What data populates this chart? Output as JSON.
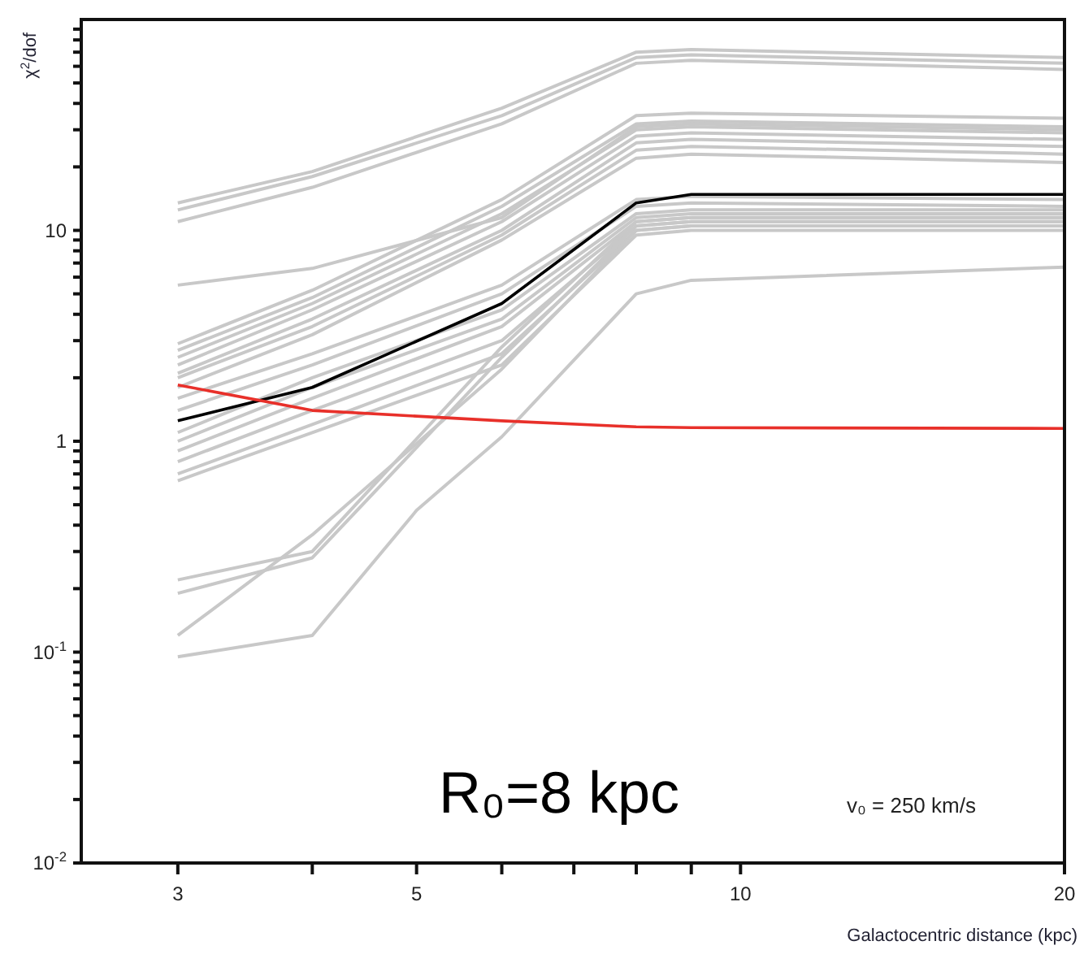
{
  "chart_data": {
    "type": "line",
    "xlabel": "Galactocentric distance (kpc)",
    "ylabel": "χ$^{2}$/dof",
    "log": "xy",
    "xlim": [
      2.44,
      20
    ],
    "ylim": [
      0.01,
      100
    ],
    "xticks": [
      3,
      {
        "value": 4,
        "label": null
      },
      5,
      {
        "value": 6,
        "label": null
      },
      {
        "value": 7,
        "label": null
      },
      {
        "value": 8,
        "label": null
      },
      {
        "value": 9,
        "label": null
      },
      10,
      20
    ],
    "yticks": [
      {
        "value": 0.01,
        "label": "10$^{-2}$"
      },
      {
        "value": 0.02,
        "label": null
      },
      {
        "value": 0.03,
        "label": null
      },
      {
        "value": 0.04,
        "label": null
      },
      {
        "value": 0.05,
        "label": null
      },
      {
        "value": 0.06,
        "label": null
      },
      {
        "value": 0.07,
        "label": null
      },
      {
        "value": 0.08,
        "label": null
      },
      {
        "value": 0.09,
        "label": null
      },
      {
        "value": 0.1,
        "label": "10$^{-1}$"
      },
      {
        "value": 0.2,
        "label": null
      },
      {
        "value": 0.3,
        "label": null
      },
      {
        "value": 0.4,
        "label": null
      },
      {
        "value": 0.5,
        "label": null
      },
      {
        "value": 0.6,
        "label": null
      },
      {
        "value": 0.7,
        "label": null
      },
      {
        "value": 0.8,
        "label": null
      },
      {
        "value": 0.9,
        "label": null
      },
      1,
      {
        "value": 2,
        "label": null
      },
      {
        "value": 3,
        "label": null
      },
      {
        "value": 4,
        "label": null
      },
      {
        "value": 5,
        "label": null
      },
      {
        "value": 6,
        "label": null
      },
      {
        "value": 7,
        "label": null
      },
      {
        "value": 8,
        "label": null
      },
      {
        "value": 9,
        "label": null
      },
      10,
      {
        "value": 20,
        "label": null
      },
      {
        "value": 30,
        "label": null
      },
      {
        "value": 40,
        "label": null
      },
      {
        "value": 50,
        "label": null
      },
      {
        "value": 60,
        "label": null
      },
      {
        "value": 70,
        "label": null
      },
      {
        "value": 80,
        "label": null
      },
      {
        "value": 90,
        "label": null
      }
    ],
    "x": [
      3,
      4,
      6,
      8,
      9,
      20
    ],
    "annotations": [
      "R₀=8 kpc",
      "v₀ = 250 km/s"
    ],
    "series": [
      {
        "color": "#c8c8c8",
        "values": [
          13.5,
          19,
          38,
          70,
          72,
          66
        ]
      },
      {
        "color": "#c8c8c8",
        "values": [
          12.5,
          18,
          35,
          66,
          68,
          62
        ]
      },
      {
        "color": "#c8c8c8",
        "values": [
          11,
          16,
          32,
          62,
          64,
          58
        ]
      },
      {
        "color": "#c8c8c8",
        "values": [
          2.9,
          5.2,
          14,
          35,
          36,
          34
        ]
      },
      {
        "color": "#c8c8c8",
        "values": [
          2.7,
          4.8,
          13,
          32,
          33,
          31
        ]
      },
      {
        "color": "#c8c8c8",
        "values": [
          2.5,
          4.5,
          12,
          30,
          31,
          29
        ]
      },
      {
        "color": "#c8c8c8",
        "values": [
          2.3,
          4.2,
          11,
          28,
          29,
          27
        ]
      },
      {
        "color": "#c8c8c8",
        "values": [
          2.1,
          3.8,
          10,
          26,
          27,
          25
        ]
      },
      {
        "color": "#c8c8c8",
        "values": [
          2,
          3.5,
          9.5,
          24,
          25,
          23
        ]
      },
      {
        "color": "#c8c8c8",
        "values": [
          1.8,
          3.2,
          9,
          22,
          23,
          21
        ]
      },
      {
        "color": "#c8c8c8",
        "values": [
          5.5,
          6.6,
          11.5,
          31,
          32,
          30
        ]
      },
      {
        "color": "#c8c8c8",
        "values": [
          1.6,
          2.6,
          5.5,
          14,
          14.5,
          14
        ]
      },
      {
        "color": "#c8c8c8",
        "values": [
          1.4,
          2.3,
          5,
          13,
          13.5,
          13
        ]
      },
      {
        "color": "#c8c8c8",
        "values": [
          1.1,
          2,
          4.2,
          12,
          12.5,
          12.5
        ]
      },
      {
        "color": "#c8c8c8",
        "values": [
          1,
          1.8,
          3.8,
          11.5,
          12,
          12
        ]
      },
      {
        "color": "#c8c8c8",
        "values": [
          0.9,
          1.6,
          3.5,
          11,
          11.5,
          11.5
        ]
      },
      {
        "color": "#c8c8c8",
        "values": [
          0.8,
          1.4,
          3,
          10.5,
          11,
          11
        ]
      },
      {
        "color": "#c8c8c8",
        "values": [
          0.7,
          1.2,
          2.6,
          10,
          10.5,
          10.5
        ]
      },
      {
        "color": "#c8c8c8",
        "values": [
          0.65,
          1.1,
          2.3,
          9.5,
          10,
          10
        ]
      },
      {
        "color": "#c8c8c8",
        "values": [
          0.22,
          0.3,
          2.8,
          11,
          11.5,
          11.5
        ]
      },
      {
        "color": "#c8c8c8",
        "values": [
          0.19,
          0.28,
          2.5,
          10.5,
          11,
          11
        ]
      },
      {
        "color": "#c8c8c8",
        "values": [
          0.12,
          0.36,
          2.2,
          10,
          10.5,
          10.5
        ]
      },
      {
        "color": "#c8c8c8",
        "x": [
          3,
          4,
          5,
          6,
          8,
          9,
          20
        ],
        "values": [
          0.095,
          0.12,
          0.47,
          1.05,
          5,
          5.8,
          6.7
        ]
      },
      {
        "color": "#000000",
        "values": [
          1.25,
          1.8,
          4.5,
          13.5,
          14.8,
          14.8
        ]
      },
      {
        "color": "#e8302a",
        "values": [
          1.85,
          1.4,
          1.25,
          1.17,
          1.16,
          1.15
        ]
      }
    ]
  }
}
